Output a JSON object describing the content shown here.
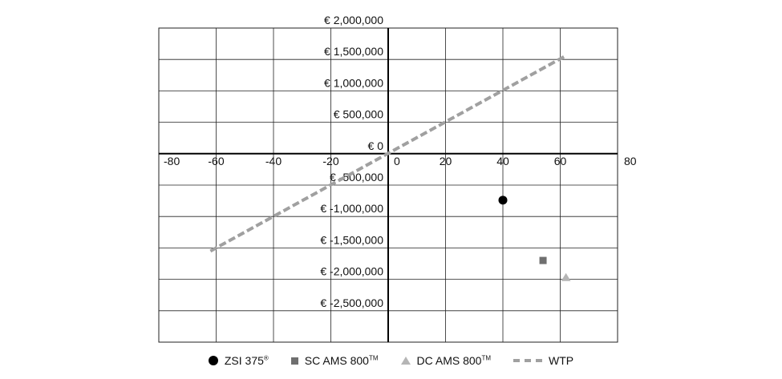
{
  "chart_data": {
    "type": "scatter",
    "xlim": [
      -80,
      80
    ],
    "ylim": [
      -3000000,
      2000000
    ],
    "x_ticks": [
      -80,
      -60,
      -40,
      -20,
      0,
      20,
      40,
      60,
      80
    ],
    "x_tick_labels": [
      "-80",
      "-60",
      "-40",
      "-20",
      "0",
      "20",
      "40",
      "60",
      "80"
    ],
    "y_ticks": [
      2000000,
      1500000,
      1000000,
      500000,
      0,
      -500000,
      -1000000,
      -1500000,
      -2000000,
      -2500000
    ],
    "y_tick_labels": [
      "€ 2,000,000",
      "€ 1,500,000",
      "€ 1,000,000",
      "€ 500,000",
      "€ 0",
      "€ -500,000",
      "€ -1,000,000",
      "€ -1,500,000",
      "€ -2,000,000",
      "€ -2,500,000"
    ],
    "grid": true,
    "legend_position": "bottom",
    "series": [
      {
        "name": "ZSI 375",
        "mark": "®",
        "marker": "circle",
        "color": "#000000",
        "points": [
          [
            40,
            -740000
          ]
        ]
      },
      {
        "name": "SC AMS 800",
        "mark": "TM",
        "marker": "square",
        "color": "#6f6f6f",
        "points": [
          [
            54,
            -1700000
          ]
        ]
      },
      {
        "name": "DC AMS 800",
        "mark": "TM",
        "marker": "triangle",
        "color": "#b5b5b5",
        "points": [
          [
            62,
            -1970000
          ]
        ]
      },
      {
        "name": "WTP",
        "mark": "",
        "marker": "dashed-line",
        "color": "#a0a0a0",
        "points": [
          [
            -62,
            -1550000
          ],
          [
            62,
            1560000
          ]
        ]
      }
    ]
  }
}
